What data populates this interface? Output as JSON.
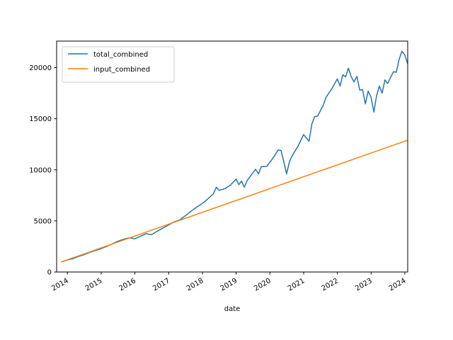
{
  "chart_data": {
    "type": "line",
    "title": "",
    "xlabel": "date",
    "ylabel": "",
    "x_axis_type": "date",
    "xlim": [
      "2013-09-06",
      "2024-02-01"
    ],
    "ylim": [
      0,
      22600
    ],
    "y_ticks": [
      0,
      5000,
      10000,
      15000,
      20000
    ],
    "x_ticks": [
      "2014",
      "2015",
      "2016",
      "2017",
      "2018",
      "2019",
      "2020",
      "2021",
      "2022",
      "2023",
      "2024"
    ],
    "grid": false,
    "legend_position": "upper-left",
    "series": [
      {
        "name": "total_combined",
        "color": "#1f77b4",
        "points": [
          [
            "2013-10-31",
            1000
          ],
          [
            "2013-12-31",
            1180
          ],
          [
            "2014-02-28",
            1300
          ],
          [
            "2014-04-30",
            1520
          ],
          [
            "2014-06-30",
            1700
          ],
          [
            "2014-08-31",
            1920
          ],
          [
            "2014-10-31",
            2100
          ],
          [
            "2014-12-31",
            2280
          ],
          [
            "2015-02-28",
            2500
          ],
          [
            "2015-04-30",
            2750
          ],
          [
            "2015-06-30",
            3000
          ],
          [
            "2015-08-31",
            3200
          ],
          [
            "2015-10-31",
            3350
          ],
          [
            "2015-12-31",
            3250
          ],
          [
            "2016-02-29",
            3500
          ],
          [
            "2016-04-30",
            3750
          ],
          [
            "2016-06-30",
            3650
          ],
          [
            "2016-08-31",
            4000
          ],
          [
            "2016-10-31",
            4300
          ],
          [
            "2016-12-31",
            4600
          ],
          [
            "2017-02-28",
            4900
          ],
          [
            "2017-04-30",
            5100
          ],
          [
            "2017-06-30",
            5500
          ],
          [
            "2017-08-31",
            5950
          ],
          [
            "2017-10-31",
            6350
          ],
          [
            "2017-12-31",
            6700
          ],
          [
            "2018-02-28",
            7150
          ],
          [
            "2018-04-30",
            7650
          ],
          [
            "2018-05-31",
            8300
          ],
          [
            "2018-06-30",
            8000
          ],
          [
            "2018-08-31",
            8150
          ],
          [
            "2018-10-31",
            8500
          ],
          [
            "2018-12-31",
            9100
          ],
          [
            "2019-01-31",
            8550
          ],
          [
            "2019-02-28",
            8900
          ],
          [
            "2019-03-31",
            8300
          ],
          [
            "2019-04-30",
            8950
          ],
          [
            "2019-06-30",
            9700
          ],
          [
            "2019-07-31",
            10050
          ],
          [
            "2019-08-31",
            9600
          ],
          [
            "2019-09-30",
            10300
          ],
          [
            "2019-11-30",
            10350
          ],
          [
            "2020-01-31",
            11100
          ],
          [
            "2020-02-29",
            11500
          ],
          [
            "2020-03-31",
            11950
          ],
          [
            "2020-04-30",
            11900
          ],
          [
            "2020-05-31",
            10800
          ],
          [
            "2020-06-30",
            9600
          ],
          [
            "2020-07-31",
            10800
          ],
          [
            "2020-08-31",
            11400
          ],
          [
            "2020-10-31",
            12300
          ],
          [
            "2020-12-31",
            13450
          ],
          [
            "2021-01-31",
            13100
          ],
          [
            "2021-02-28",
            12800
          ],
          [
            "2021-03-31",
            14500
          ],
          [
            "2021-04-30",
            15200
          ],
          [
            "2021-05-31",
            15250
          ],
          [
            "2021-07-31",
            16300
          ],
          [
            "2021-08-31",
            17100
          ],
          [
            "2021-10-31",
            17900
          ],
          [
            "2021-12-31",
            18900
          ],
          [
            "2022-01-31",
            18200
          ],
          [
            "2022-02-28",
            19300
          ],
          [
            "2022-03-31",
            19100
          ],
          [
            "2022-04-30",
            19950
          ],
          [
            "2022-05-31",
            19100
          ],
          [
            "2022-06-30",
            18600
          ],
          [
            "2022-07-31",
            19150
          ],
          [
            "2022-08-31",
            17800
          ],
          [
            "2022-09-30",
            17850
          ],
          [
            "2022-10-31",
            16450
          ],
          [
            "2022-11-30",
            17700
          ],
          [
            "2022-12-31",
            17100
          ],
          [
            "2023-01-31",
            15650
          ],
          [
            "2023-02-28",
            17200
          ],
          [
            "2023-03-31",
            18200
          ],
          [
            "2023-04-30",
            17500
          ],
          [
            "2023-05-31",
            18800
          ],
          [
            "2023-06-30",
            18450
          ],
          [
            "2023-07-31",
            19050
          ],
          [
            "2023-08-31",
            19600
          ],
          [
            "2023-09-30",
            19550
          ],
          [
            "2023-10-31",
            20800
          ],
          [
            "2023-11-30",
            21600
          ],
          [
            "2023-12-31",
            21250
          ],
          [
            "2024-01-31",
            20400
          ]
        ]
      },
      {
        "name": "input_combined",
        "color": "#ff7f0e",
        "points": [
          [
            "2013-10-31",
            1000
          ],
          [
            "2024-01-31",
            12900
          ]
        ]
      }
    ]
  }
}
